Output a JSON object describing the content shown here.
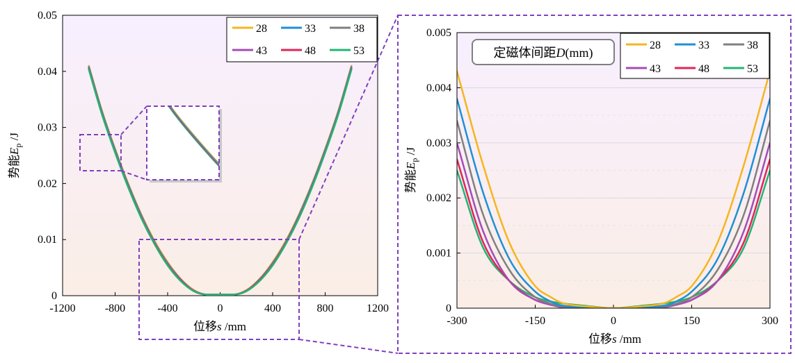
{
  "chart_data": [
    {
      "type": "line",
      "panel": "full-range",
      "xlabel_prefix": "位移",
      "xlabel_var": "s",
      "xlabel_unit": " /mm",
      "ylabel_prefix": "势能",
      "ylabel_var": "E",
      "ylabel_sub": "p",
      "ylabel_unit": " /J",
      "xlim": [
        -1200,
        1200
      ],
      "ylim": [
        0,
        0.05
      ],
      "x_ticks": [
        -1200,
        -800,
        -400,
        0,
        400,
        800,
        1200
      ],
      "x_tick_labels": [
        "-1200",
        "-800",
        "-400",
        "0",
        "400",
        "800",
        "1200"
      ],
      "y_ticks": [
        0,
        0.01,
        0.02,
        0.03,
        0.04,
        0.05
      ],
      "y_tick_labels": [
        "0",
        "0.01",
        "0.02",
        "0.03",
        "0.04",
        "0.05"
      ],
      "legend_position": "top-right",
      "background_gradient": [
        "#f7efff",
        "#fbeee6"
      ],
      "zoom_regions": [
        "x -600..600, y 0..0.01",
        "x -1000..-760, y 0.022..0.029"
      ],
      "series": [
        {
          "name": "28",
          "color": "#f5b51f",
          "x": [
            -1000,
            -900,
            -800,
            -700,
            -600,
            -500,
            -400,
            -300,
            -200,
            -100,
            0,
            100,
            200,
            300,
            400,
            500,
            600,
            700,
            800,
            900,
            1000
          ],
          "y": [
            0.041,
            0.033,
            0.0262,
            0.02,
            0.0145,
            0.0098,
            0.006,
            0.003,
            0.001,
            0.0002,
            0.0002,
            0.0002,
            0.001,
            0.003,
            0.006,
            0.0098,
            0.0145,
            0.02,
            0.0262,
            0.033,
            0.041
          ]
        },
        {
          "name": "33",
          "color": "#1e8fd6",
          "x": [
            -1000,
            -900,
            -800,
            -700,
            -600,
            -500,
            -400,
            -300,
            -200,
            -100,
            0,
            100,
            200,
            300,
            400,
            500,
            600,
            700,
            800,
            900,
            1000
          ],
          "y": [
            0.0408,
            0.0328,
            0.026,
            0.0198,
            0.0143,
            0.0096,
            0.0058,
            0.0029,
            0.0009,
            0.0002,
            0.0002,
            0.0002,
            0.0009,
            0.0029,
            0.0058,
            0.0096,
            0.0143,
            0.0198,
            0.026,
            0.0328,
            0.0408
          ]
        },
        {
          "name": "38",
          "color": "#7f7f7f",
          "x": [
            -1000,
            -900,
            -800,
            -700,
            -600,
            -500,
            -400,
            -300,
            -200,
            -100,
            0,
            100,
            200,
            300,
            400,
            500,
            600,
            700,
            800,
            900,
            1000
          ],
          "y": [
            0.0406,
            0.0326,
            0.0258,
            0.0196,
            0.0141,
            0.0095,
            0.0057,
            0.0028,
            0.0009,
            0.0002,
            0.0002,
            0.0002,
            0.0009,
            0.0028,
            0.0057,
            0.0095,
            0.0141,
            0.0196,
            0.0258,
            0.0326,
            0.0406
          ]
        },
        {
          "name": "43",
          "color": "#a54bb6",
          "x": [
            -1000,
            -900,
            -800,
            -700,
            -600,
            -500,
            -400,
            -300,
            -200,
            -100,
            0,
            100,
            200,
            300,
            400,
            500,
            600,
            700,
            800,
            900,
            1000
          ],
          "y": [
            0.0405,
            0.0325,
            0.0257,
            0.0195,
            0.014,
            0.0094,
            0.0056,
            0.0028,
            0.0009,
            0.0002,
            0.0002,
            0.0002,
            0.0009,
            0.0028,
            0.0056,
            0.0094,
            0.014,
            0.0195,
            0.0257,
            0.0325,
            0.0405
          ]
        },
        {
          "name": "48",
          "color": "#e2245a",
          "x": [
            -1000,
            -900,
            -800,
            -700,
            -600,
            -500,
            -400,
            -300,
            -200,
            -100,
            0,
            100,
            200,
            300,
            400,
            500,
            600,
            700,
            800,
            900,
            1000
          ],
          "y": [
            0.0404,
            0.0324,
            0.0256,
            0.0194,
            0.0139,
            0.0093,
            0.0055,
            0.0027,
            0.0008,
            0.0002,
            0.0002,
            0.0002,
            0.0008,
            0.0027,
            0.0055,
            0.0093,
            0.0139,
            0.0194,
            0.0256,
            0.0324,
            0.0404
          ]
        },
        {
          "name": "53",
          "color": "#22b573",
          "x": [
            -1000,
            -900,
            -800,
            -700,
            -600,
            -500,
            -400,
            -300,
            -200,
            -100,
            0,
            100,
            200,
            300,
            400,
            500,
            600,
            700,
            800,
            900,
            1000
          ],
          "y": [
            0.0403,
            0.0323,
            0.0255,
            0.0193,
            0.0138,
            0.0092,
            0.0054,
            0.0026,
            0.0008,
            0.0002,
            0.0002,
            0.0002,
            0.0008,
            0.0026,
            0.0054,
            0.0092,
            0.0138,
            0.0193,
            0.0255,
            0.0323,
            0.0403
          ]
        }
      ]
    },
    {
      "type": "line",
      "panel": "zoomed",
      "annotation": "定磁体间距",
      "annotation_var": "D",
      "annotation_unit": "(mm)",
      "xlabel_prefix": "位移",
      "xlabel_var": "s",
      "xlabel_unit": " /mm",
      "ylabel_prefix": "势能",
      "ylabel_var": "E",
      "ylabel_sub": "p",
      "ylabel_unit": " /J",
      "xlim": [
        -300,
        300
      ],
      "ylim": [
        0,
        0.005
      ],
      "x_ticks": [
        -300,
        -150,
        0,
        150,
        300
      ],
      "x_tick_labels": [
        "-300",
        "-150",
        "0",
        "150",
        "300"
      ],
      "y_ticks": [
        0,
        0.001,
        0.002,
        0.003,
        0.004,
        0.005
      ],
      "y_tick_labels": [
        "0",
        "0.001",
        "0.002",
        "0.003",
        "0.004",
        "0.005"
      ],
      "grid": true,
      "legend_position": "top-right",
      "series": [
        {
          "name": "28",
          "color": "#f5b51f",
          "x": [
            -300,
            -250,
            -200,
            -150,
            -120,
            -100,
            -50,
            0,
            50,
            100,
            120,
            150,
            200,
            250,
            300
          ],
          "y": [
            0.0043,
            0.0026,
            0.0012,
            0.0004,
            0.0002,
            0.0001,
            3e-05,
            0.0,
            3e-05,
            0.0001,
            0.0002,
            0.0004,
            0.0012,
            0.0026,
            0.0043
          ]
        },
        {
          "name": "33",
          "color": "#1e8fd6",
          "x": [
            -300,
            -250,
            -200,
            -150,
            -120,
            -100,
            -50,
            0,
            50,
            100,
            120,
            150,
            200,
            250,
            300
          ],
          "y": [
            0.0038,
            0.0021,
            0.0009,
            0.0003,
            0.00012,
            5e-05,
            2e-05,
            0.0,
            2e-05,
            5e-05,
            0.00012,
            0.0003,
            0.0009,
            0.0021,
            0.0038
          ]
        },
        {
          "name": "38",
          "color": "#7f7f7f",
          "x": [
            -300,
            -250,
            -200,
            -150,
            -120,
            -100,
            -50,
            0,
            50,
            100,
            120,
            150,
            200,
            250,
            300
          ],
          "y": [
            0.0034,
            0.0017,
            0.0007,
            0.0002,
            8e-05,
            3e-05,
            1e-05,
            0.0,
            1e-05,
            3e-05,
            8e-05,
            0.0002,
            0.0007,
            0.0017,
            0.0034
          ]
        },
        {
          "name": "43",
          "color": "#a54bb6",
          "x": [
            -300,
            -250,
            -200,
            -150,
            -120,
            -100,
            -50,
            0,
            50,
            100,
            120,
            150,
            200,
            250,
            300
          ],
          "y": [
            0.003,
            0.0014,
            0.0005,
            0.00015,
            6e-05,
            2e-05,
            1e-05,
            0.0,
            1e-05,
            2e-05,
            6e-05,
            0.00015,
            0.0005,
            0.0014,
            0.003
          ]
        },
        {
          "name": "48",
          "color": "#e2245a",
          "x": [
            -300,
            -250,
            -200,
            -150,
            -120,
            -100,
            -50,
            0,
            50,
            100,
            120,
            150,
            200,
            250,
            300
          ],
          "y": [
            0.0027,
            0.0012,
            0.0005,
            0.00015,
            7e-05,
            4e-05,
            2e-05,
            0.0,
            2e-05,
            4e-05,
            7e-05,
            0.00015,
            0.0005,
            0.0012,
            0.0027
          ]
        },
        {
          "name": "53",
          "color": "#22b573",
          "x": [
            -300,
            -250,
            -200,
            -150,
            -120,
            -100,
            -50,
            0,
            50,
            100,
            120,
            150,
            200,
            250,
            300
          ],
          "y": [
            0.0025,
            0.0011,
            0.0005,
            0.0002,
            0.00012,
            9e-05,
            4e-05,
            0.0,
            4e-05,
            9e-05,
            0.00012,
            0.0002,
            0.0005,
            0.0011,
            0.0025
          ]
        }
      ]
    }
  ]
}
